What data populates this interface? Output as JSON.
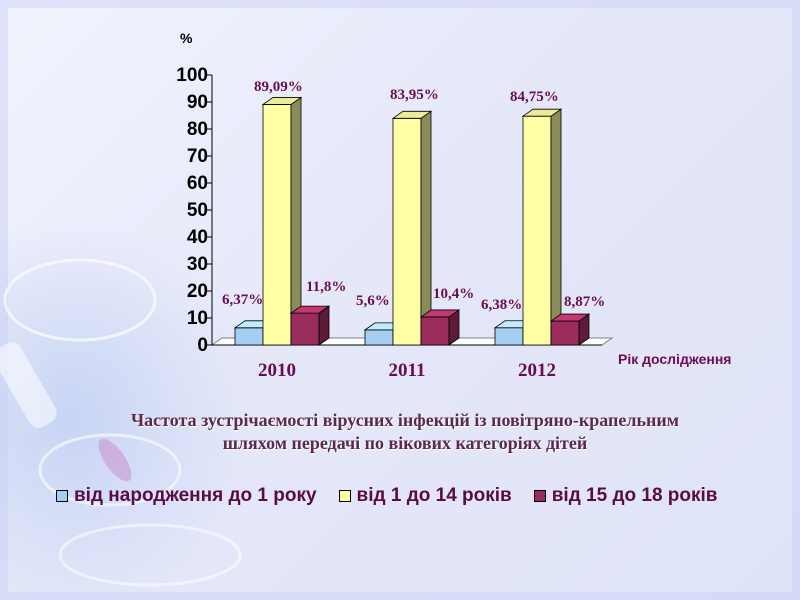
{
  "chart_data": {
    "type": "bar",
    "title_lines": [
      "Частота зустрічаємості вірусних інфекцій із повітряно-крапельним",
      "шляхом передачі по вікових категоріях дітей"
    ],
    "ylabel": "%",
    "xlabel": "Рік дослідження",
    "categories": [
      "2010",
      "2011",
      "2012"
    ],
    "ylim": [
      0,
      100
    ],
    "yticks": [
      0,
      10,
      20,
      30,
      40,
      50,
      60,
      70,
      80,
      90,
      100
    ],
    "series": [
      {
        "name": "від народження до 1 року",
        "color": "#a6cef2",
        "values": [
          6.37,
          5.6,
          6.38
        ],
        "labels": [
          "6,37%",
          "5,6%",
          "6,38%"
        ]
      },
      {
        "name": "від 1 до 14 років",
        "color": "#ffffa6",
        "values": [
          89.09,
          83.95,
          84.75
        ],
        "labels": [
          "89,09%",
          "83,95%",
          "84,75%"
        ]
      },
      {
        "name": "від 15 до 18 років",
        "color": "#9b2d5c",
        "values": [
          11.8,
          10.4,
          8.87
        ],
        "labels": [
          "11,8%",
          "10,4%",
          "8,87%"
        ]
      }
    ],
    "legend_position": "bottom",
    "grid": false,
    "style": "3d-columns"
  }
}
